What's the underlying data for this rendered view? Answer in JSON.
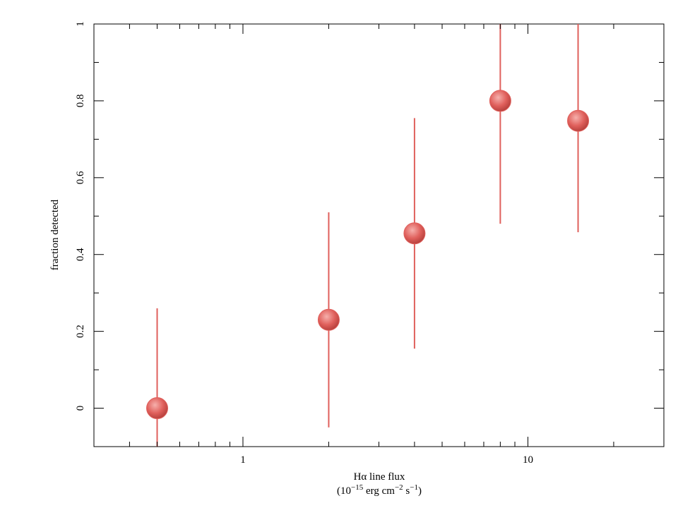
{
  "chart_data": {
    "type": "scatter",
    "xlabel": {
      "line1": "Hα line flux",
      "line2": [
        "(10",
        "−15",
        " erg cm",
        "−2",
        " s",
        "−1",
        ")"
      ]
    },
    "ylabel": "fraction detected",
    "x": [
      0.5,
      2,
      4,
      8,
      15
    ],
    "values": [
      0,
      0.23,
      0.455,
      0.8,
      0.748
    ],
    "errors": [
      0.26,
      0.28,
      0.3,
      0.32,
      0.29
    ],
    "color": "#e0605c",
    "xlog": true,
    "xlim": [
      0.3,
      30
    ],
    "xticks": [
      1,
      10
    ],
    "xminorticks": [
      0.3,
      0.4,
      0.5,
      0.6,
      0.7,
      0.8,
      0.9,
      2,
      3,
      4,
      5,
      6,
      7,
      8,
      9,
      20,
      30
    ],
    "ylim": [
      -0.1,
      1
    ],
    "yticks": [
      0,
      0.2,
      0.4,
      0.6,
      0.8,
      1
    ],
    "yminorticks": [
      -0.1,
      0.1,
      0.3,
      0.5,
      0.7,
      0.9
    ]
  }
}
